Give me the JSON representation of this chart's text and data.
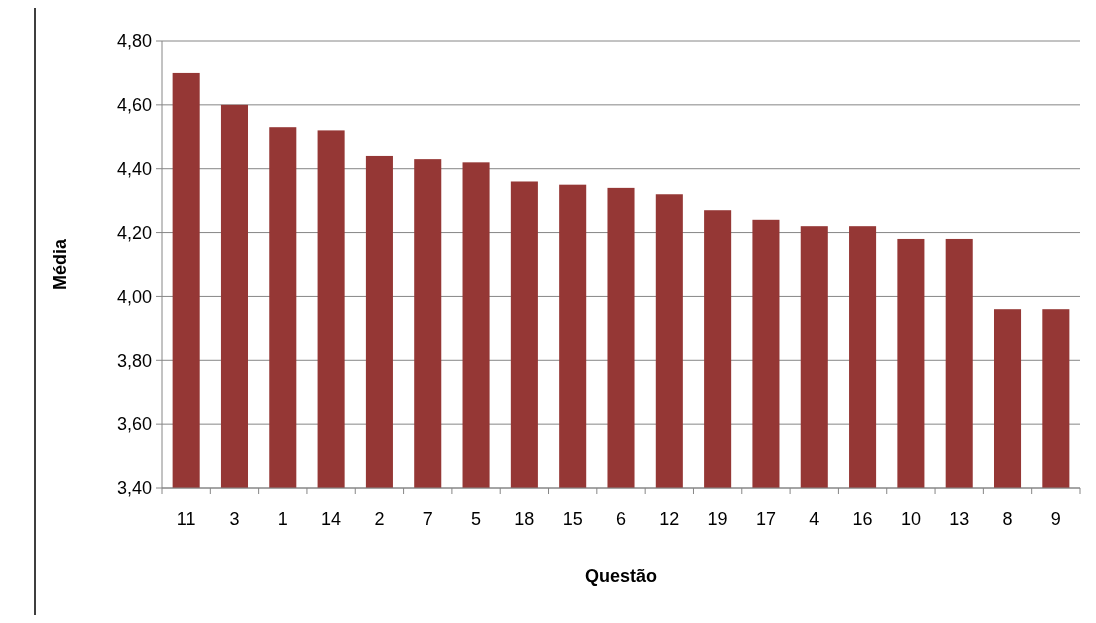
{
  "chart_data": {
    "type": "bar",
    "xlabel": "Questão",
    "ylabel": "Média",
    "categories": [
      "11",
      "3",
      "1",
      "14",
      "2",
      "7",
      "5",
      "18",
      "15",
      "6",
      "12",
      "19",
      "17",
      "4",
      "16",
      "10",
      "13",
      "8",
      "9"
    ],
    "values": [
      4.7,
      4.6,
      4.53,
      4.52,
      4.44,
      4.43,
      4.42,
      4.36,
      4.35,
      4.34,
      4.32,
      4.27,
      4.24,
      4.22,
      4.22,
      4.18,
      4.18,
      3.96,
      3.96
    ],
    "color": "#953735",
    "ylim": [
      3.4,
      4.8
    ],
    "yticks": [
      {
        "value": 3.4,
        "label": "3,40"
      },
      {
        "value": 3.6,
        "label": "3,60"
      },
      {
        "value": 3.8,
        "label": "3,80"
      },
      {
        "value": 4.0,
        "label": "4,00"
      },
      {
        "value": 4.2,
        "label": "4,20"
      },
      {
        "value": 4.4,
        "label": "4,40"
      },
      {
        "value": 4.6,
        "label": "4,60"
      },
      {
        "value": 4.8,
        "label": "4,80"
      }
    ],
    "grid": "y"
  }
}
